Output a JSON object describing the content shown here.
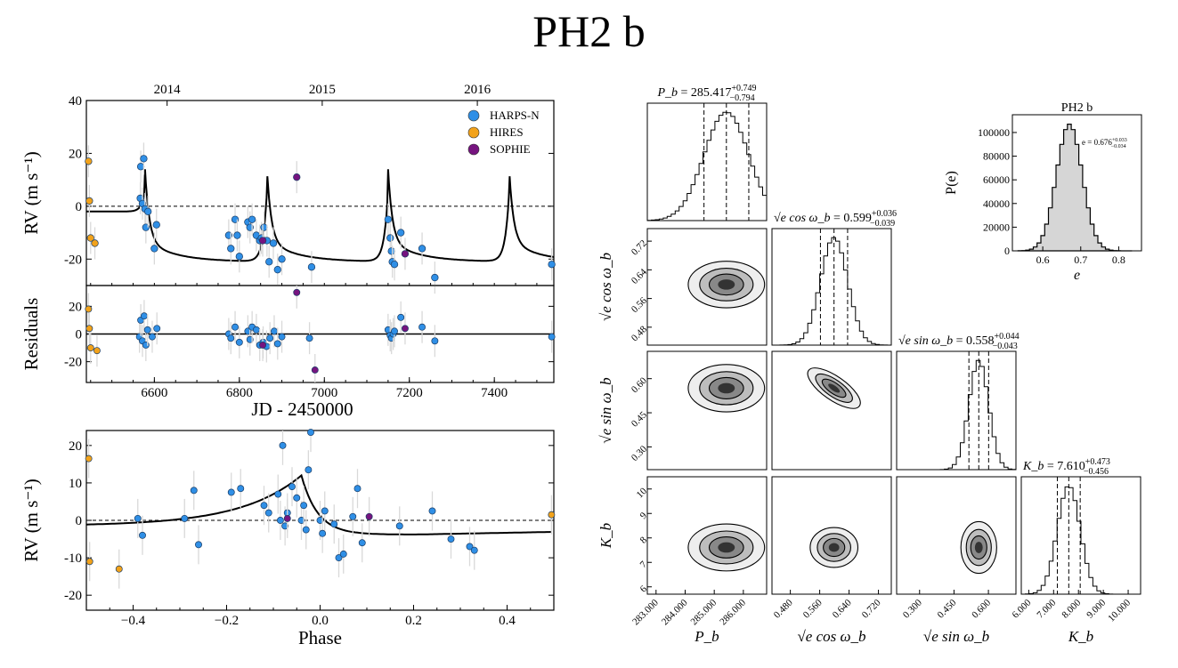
{
  "title": "PH2 b",
  "chart_data": [
    {
      "id": "rv-time",
      "type": "scatter",
      "title": "",
      "xlabel": "",
      "ylabel": "RV (m s⁻¹)",
      "xlim": [
        6440,
        7540
      ],
      "ylim": [
        -30,
        40
      ],
      "yticks": [
        40,
        20,
        0,
        -20
      ],
      "top_axis": {
        "ticks": [
          {
            "x": 6630,
            "label": "2014"
          },
          {
            "x": 6995,
            "label": "2015"
          },
          {
            "x": 7360,
            "label": "2016"
          }
        ]
      },
      "legend": {
        "position": "top-right",
        "entries": [
          {
            "label": "HARPS-N",
            "color": "#2f8fe6"
          },
          {
            "label": "HIRES",
            "color": "#f2a21a"
          },
          {
            "label": "SOPHIE",
            "color": "#76147f"
          }
        ]
      },
      "series": [
        {
          "name": "HARPS-N",
          "color": "#2f8fe6",
          "points": [
            [
              6567,
              3
            ],
            [
              6568,
              15
            ],
            [
              6572,
              1
            ],
            [
              6575,
              18
            ],
            [
              6578,
              -1
            ],
            [
              6580,
              -8
            ],
            [
              6585,
              -2
            ],
            [
              6600,
              -16
            ],
            [
              6605,
              -7
            ],
            [
              6775,
              -11
            ],
            [
              6780,
              -16
            ],
            [
              6790,
              -5
            ],
            [
              6795,
              -11
            ],
            [
              6800,
              -19
            ],
            [
              6820,
              -6
            ],
            [
              6825,
              -8
            ],
            [
              6830,
              -5
            ],
            [
              6840,
              -11
            ],
            [
              6848,
              -13
            ],
            [
              6852,
              -12
            ],
            [
              6858,
              -8
            ],
            [
              6865,
              -13
            ],
            [
              6870,
              -21
            ],
            [
              6880,
              -14
            ],
            [
              6890,
              -24
            ],
            [
              6900,
              -20
            ],
            [
              6970,
              -23
            ],
            [
              7150,
              -5
            ],
            [
              7155,
              -12
            ],
            [
              7158,
              -17
            ],
            [
              7160,
              -21
            ],
            [
              7165,
              -22
            ],
            [
              7180,
              -10
            ],
            [
              7230,
              -16
            ],
            [
              7260,
              -27
            ],
            [
              7535,
              -22
            ]
          ]
        },
        {
          "name": "HIRES",
          "color": "#f2a21a",
          "points": [
            [
              6445,
              17
            ],
            [
              6447,
              2
            ],
            [
              6450,
              -12
            ],
            [
              6460,
              -14
            ]
          ]
        },
        {
          "name": "SOPHIE",
          "color": "#76147f",
          "points": [
            [
              6855,
              -13
            ],
            [
              6935,
              11
            ],
            [
              7190,
              -18
            ]
          ]
        }
      ],
      "model_line": "keplerian fit"
    },
    {
      "id": "residuals",
      "type": "scatter",
      "xlabel": "JD - 2450000",
      "ylabel": "Residuals",
      "xlim": [
        6440,
        7540
      ],
      "ylim": [
        -35,
        35
      ],
      "xticks": [
        6600,
        6800,
        7000,
        7200,
        7400
      ],
      "yticks": [
        20,
        0,
        -20
      ],
      "series": [
        {
          "name": "HARPS-N",
          "color": "#2f8fe6",
          "points": [
            [
              6565,
              -2
            ],
            [
              6568,
              10
            ],
            [
              6572,
              -5
            ],
            [
              6576,
              13
            ],
            [
              6580,
              -8
            ],
            [
              6584,
              3
            ],
            [
              6595,
              -2
            ],
            [
              6606,
              4
            ],
            [
              6775,
              0
            ],
            [
              6780,
              -3
            ],
            [
              6790,
              5
            ],
            [
              6800,
              -6
            ],
            [
              6820,
              2
            ],
            [
              6825,
              -4
            ],
            [
              6830,
              5
            ],
            [
              6840,
              3
            ],
            [
              6848,
              -8
            ],
            [
              6856,
              -6
            ],
            [
              6864,
              -9
            ],
            [
              6872,
              -3
            ],
            [
              6882,
              2
            ],
            [
              6890,
              -7
            ],
            [
              6900,
              -2
            ],
            [
              6965,
              -3
            ],
            [
              7150,
              3
            ],
            [
              7155,
              -1
            ],
            [
              7158,
              -3
            ],
            [
              7162,
              0
            ],
            [
              7165,
              2
            ],
            [
              7180,
              12
            ],
            [
              7230,
              5
            ],
            [
              7260,
              -5
            ],
            [
              7535,
              -2
            ]
          ]
        },
        {
          "name": "HIRES",
          "color": "#f2a21a",
          "points": [
            [
              6445,
              18
            ],
            [
              6447,
              4
            ],
            [
              6450,
              -10
            ],
            [
              6465,
              -12
            ]
          ]
        },
        {
          "name": "SOPHIE",
          "color": "#76147f",
          "points": [
            [
              6855,
              -8
            ],
            [
              6935,
              30
            ],
            [
              6978,
              -26
            ],
            [
              7190,
              4
            ]
          ]
        }
      ]
    },
    {
      "id": "rv-phase",
      "type": "scatter",
      "xlabel": "Phase",
      "ylabel": "RV (m s⁻¹)",
      "xlim": [
        -0.5,
        0.5
      ],
      "ylim": [
        -24,
        24
      ],
      "xticks": [
        -0.4,
        -0.2,
        0.0,
        0.2,
        0.4
      ],
      "xtick_labels": [
        "−0.4",
        "−0.2",
        "0.0",
        "0.2",
        "0.4"
      ],
      "yticks": [
        20,
        10,
        0,
        -10,
        -20
      ],
      "series": [
        {
          "name": "HARPS-N",
          "color": "#2f8fe6",
          "points": [
            [
              -0.39,
              0.5
            ],
            [
              -0.38,
              -4
            ],
            [
              -0.29,
              0.5
            ],
            [
              -0.27,
              8
            ],
            [
              -0.26,
              -6.5
            ],
            [
              -0.19,
              7.5
            ],
            [
              -0.17,
              8.5
            ],
            [
              -0.12,
              4
            ],
            [
              -0.11,
              2
            ],
            [
              -0.09,
              7
            ],
            [
              -0.085,
              0
            ],
            [
              -0.08,
              20
            ],
            [
              -0.075,
              -1.5
            ],
            [
              -0.07,
              2
            ],
            [
              -0.06,
              9
            ],
            [
              -0.05,
              6
            ],
            [
              -0.04,
              0
            ],
            [
              -0.035,
              4
            ],
            [
              -0.03,
              -2.5
            ],
            [
              -0.025,
              13.5
            ],
            [
              -0.02,
              23.5
            ],
            [
              0.0,
              0
            ],
            [
              0.005,
              -3.5
            ],
            [
              0.01,
              2.5
            ],
            [
              0.03,
              -1
            ],
            [
              0.04,
              -10
            ],
            [
              0.05,
              -9
            ],
            [
              0.07,
              1
            ],
            [
              0.08,
              8.5
            ],
            [
              0.09,
              -6
            ],
            [
              0.17,
              -1.5
            ],
            [
              0.24,
              2.5
            ],
            [
              0.28,
              -5
            ],
            [
              0.32,
              -7
            ],
            [
              0.33,
              -8
            ]
          ]
        },
        {
          "name": "HIRES",
          "color": "#f2a21a",
          "points": [
            [
              -0.495,
              16.5
            ],
            [
              -0.493,
              -11
            ],
            [
              -0.43,
              -13
            ],
            [
              0.495,
              1.5
            ]
          ]
        },
        {
          "name": "SOPHIE",
          "color": "#76147f",
          "points": [
            [
              -0.07,
              0.5
            ],
            [
              0.105,
              1
            ]
          ]
        }
      ],
      "model_line": "phase-folded fit"
    },
    {
      "id": "corner",
      "type": "histogram",
      "params": [
        {
          "axis_label": "P_b",
          "title": "285.417",
          "err_up": "+0.749",
          "err_dn": "−0.794",
          "ticks": [
            "283.000",
            "284.000",
            "285.000",
            "286.000"
          ],
          "tick_values": [
            283,
            284,
            285,
            286
          ],
          "range": [
            282.7,
            286.8
          ],
          "median": 285.417,
          "std": 0.77
        },
        {
          "axis_label": "√e cos ω_b",
          "title": "0.599",
          "err_up": "+0.036",
          "err_dn": "−0.039",
          "ticks": [
            "0.480",
            "0.560",
            "0.640",
            "0.720"
          ],
          "tick_values": [
            0.48,
            0.56,
            0.64,
            0.72
          ],
          "range": [
            0.43,
            0.755
          ],
          "median": 0.599,
          "std": 0.037,
          "y_ticks": [
            "0.72",
            "0.64",
            "0.56",
            "0.48"
          ]
        },
        {
          "axis_label": "√e sin ω_b",
          "title": "0.558",
          "err_up": "+0.044",
          "err_dn": "−0.043",
          "ticks": [
            "0.300",
            "0.450",
            "0.600"
          ],
          "tick_values": [
            0.3,
            0.45,
            0.6
          ],
          "range": [
            0.2,
            0.72
          ],
          "median": 0.558,
          "std": 0.043,
          "y_ticks": [
            "0.60",
            "0.45",
            "0.30"
          ]
        },
        {
          "axis_label": "K_b",
          "title": "7.610",
          "err_up": "+0.473",
          "err_dn": "−0.456",
          "ticks": [
            "6.000",
            "7.000",
            "8.000",
            "9.000",
            "10.000"
          ],
          "tick_values": [
            6,
            7,
            8,
            9,
            10
          ],
          "range": [
            5.7,
            10.5
          ],
          "median": 7.61,
          "std": 0.46,
          "y_ticks": [
            "10",
            "9",
            "8",
            "7",
            "6"
          ]
        }
      ]
    },
    {
      "id": "ecc-hist",
      "type": "histogram",
      "title": "PH2 b",
      "xlabel": "e",
      "ylabel": "P(e)",
      "xlim": [
        0.52,
        0.86
      ],
      "ylim": [
        0,
        115000
      ],
      "xticks": [
        0.6,
        0.7,
        0.8
      ],
      "yticks": [
        0,
        20000,
        40000,
        60000,
        80000,
        100000
      ],
      "annotation": "e = 0.676",
      "annotation_up": "+0.033",
      "annotation_dn": "−0.034",
      "peak": 107000,
      "mean": 0.676,
      "std": 0.034
    }
  ]
}
